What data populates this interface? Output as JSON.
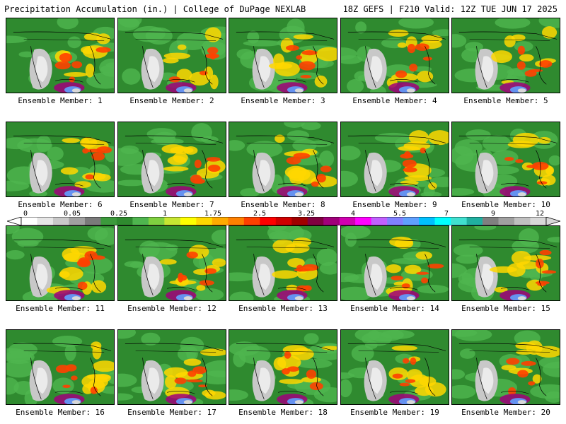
{
  "header": {
    "left": "Precipitation Accumulation (in.) | College of DuPage NEXLAB",
    "right": "18Z GEFS | F210 Valid: 12Z TUE JUN 17 2025"
  },
  "panels": [
    {
      "label": "Ensemble Member: 1"
    },
    {
      "label": "Ensemble Member: 2"
    },
    {
      "label": "Ensemble Member: 3"
    },
    {
      "label": "Ensemble Member: 4"
    },
    {
      "label": "Ensemble Member: 5"
    },
    {
      "label": "Ensemble Member: 6"
    },
    {
      "label": "Ensemble Member: 7"
    },
    {
      "label": "Ensemble Member: 8"
    },
    {
      "label": "Ensemble Member: 9"
    },
    {
      "label": "Ensemble Member: 10"
    },
    {
      "label": "Ensemble Member: 11"
    },
    {
      "label": "Ensemble Member: 12"
    },
    {
      "label": "Ensemble Member: 13"
    },
    {
      "label": "Ensemble Member: 14"
    },
    {
      "label": "Ensemble Member: 15"
    },
    {
      "label": "Ensemble Member: 16"
    },
    {
      "label": "Ensemble Member: 17"
    },
    {
      "label": "Ensemble Member: 18"
    },
    {
      "label": "Ensemble Member: 19"
    },
    {
      "label": "Ensemble Member: 20"
    }
  ],
  "colorbar": {
    "tick_labels": [
      "0",
      "0.05",
      "0.25",
      "1",
      "1.75",
      "2.5",
      "3.25",
      "4",
      "5.5",
      "7",
      "9",
      "12"
    ],
    "colors": [
      "#ffffff",
      "#e6e6e6",
      "#c8c8c8",
      "#a0a0a0",
      "#7a7a7a",
      "#3c9a3c",
      "#2f8a2f",
      "#4fb54f",
      "#7fd040",
      "#c8e632",
      "#ffff00",
      "#ffd700",
      "#ffaa00",
      "#ff8000",
      "#ff4000",
      "#ff0000",
      "#d00000",
      "#a00000",
      "#800040",
      "#a0007a",
      "#d000b0",
      "#ff00ff",
      "#c060ff",
      "#8080ff",
      "#60a0ff",
      "#00c0ff",
      "#00ffff",
      "#40e0d0",
      "#20b0a0",
      "#808080",
      "#a0a0a0",
      "#c0c0c0",
      "#d8d8d8"
    ]
  }
}
